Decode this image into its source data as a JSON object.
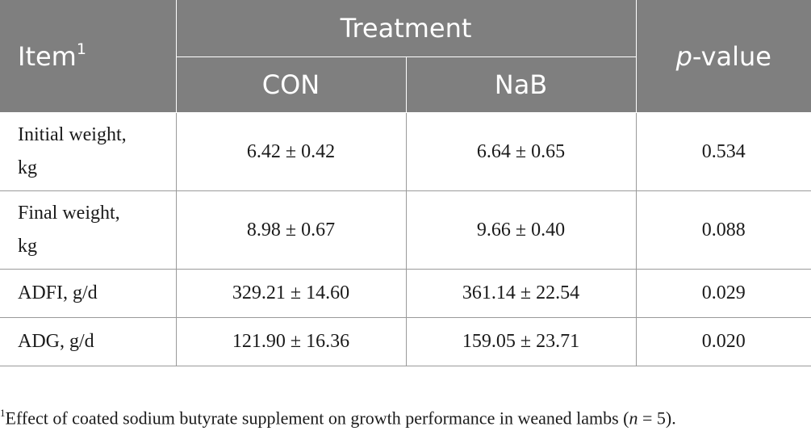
{
  "header": {
    "item": "Item",
    "item_sup": "1",
    "treatment": "Treatment",
    "con": "CON",
    "nab": "NaB",
    "p_prefix": "p",
    "p_suffix": "-value"
  },
  "rows": [
    {
      "item_line1": "Initial weight,",
      "item_line2": "kg",
      "con": "6.42 ± 0.42",
      "nab": "6.64 ± 0.65",
      "p": "0.534"
    },
    {
      "item_line1": "Final weight,",
      "item_line2": "kg",
      "con": "8.98 ± 0.67",
      "nab": "9.66 ± 0.40",
      "p": "0.088"
    },
    {
      "item_line1": "ADFI, g/d",
      "con": "329.21 ± 14.60",
      "nab": "361.14 ± 22.54",
      "p": "0.029"
    },
    {
      "item_line1": "ADG, g/d",
      "con": "121.90 ± 16.36",
      "nab": "159.05 ± 23.71",
      "p": "0.020"
    }
  ],
  "footnote": {
    "sup": "1",
    "text_before": "Effect of coated sodium butyrate supplement on growth performance in weaned lambs (",
    "n_italic": "n",
    "text_after": " = 5)."
  }
}
